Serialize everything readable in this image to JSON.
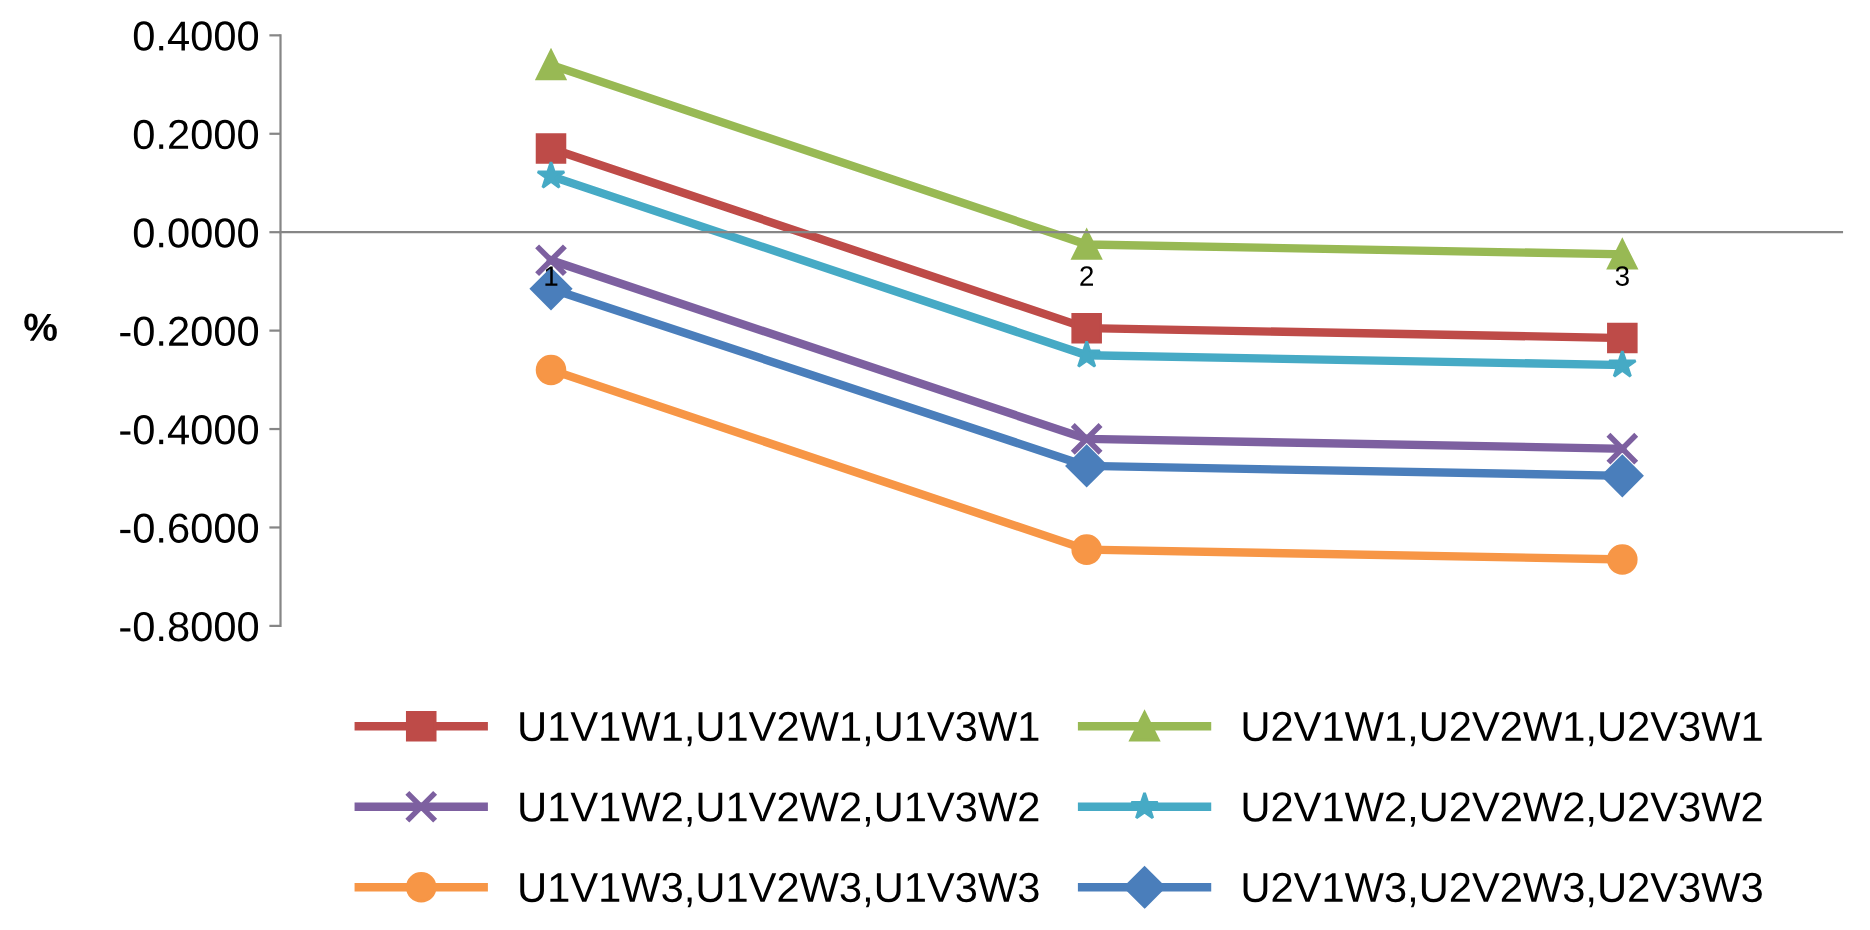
{
  "chart_data": {
    "type": "line",
    "ylabel": "%",
    "categories": [
      "1",
      "2",
      "3"
    ],
    "ylim": [
      -0.8,
      0.4
    ],
    "yticks": [
      {
        "value": -0.8,
        "label": "-0.8000"
      },
      {
        "value": -0.6,
        "label": "-0.6000"
      },
      {
        "value": -0.4,
        "label": "-0.4000"
      },
      {
        "value": -0.2,
        "label": "-0.2000"
      },
      {
        "value": 0,
        "label": "0.0000"
      },
      {
        "value": 0.2,
        "label": "0.2000"
      },
      {
        "value": 0.4,
        "label": "0.4000"
      }
    ],
    "grid": false,
    "legend": "bottom",
    "series": [
      {
        "name": "U1V1W1,U1V2W1,U1V3W1",
        "color": "#be4b48",
        "marker": "square",
        "values": [
          0.17,
          -0.195,
          -0.215
        ]
      },
      {
        "name": "U2V1W1,U2V2W1,U2V3W1",
        "color": "#98b954",
        "marker": "triangle",
        "values": [
          0.34,
          -0.025,
          -0.045
        ]
      },
      {
        "name": "U1V1W2,U1V2W2,U1V3W2",
        "color": "#7d60a0",
        "marker": "cross",
        "values": [
          -0.057,
          -0.42,
          -0.44
        ]
      },
      {
        "name": "U2V1W2,U2V2W2,U2V3W2",
        "color": "#46aac5",
        "marker": "star",
        "values": [
          0.114,
          -0.25,
          -0.27
        ]
      },
      {
        "name": "U1V1W3,U1V2W3,U1V3W3",
        "color": "#f79646",
        "marker": "circle",
        "values": [
          -0.28,
          -0.645,
          -0.665
        ]
      },
      {
        "name": "U2V1W3,U2V2W3,U2V3W3",
        "color": "#4a7ebb",
        "marker": "diamond",
        "values": [
          -0.115,
          -0.475,
          -0.495
        ]
      }
    ]
  }
}
